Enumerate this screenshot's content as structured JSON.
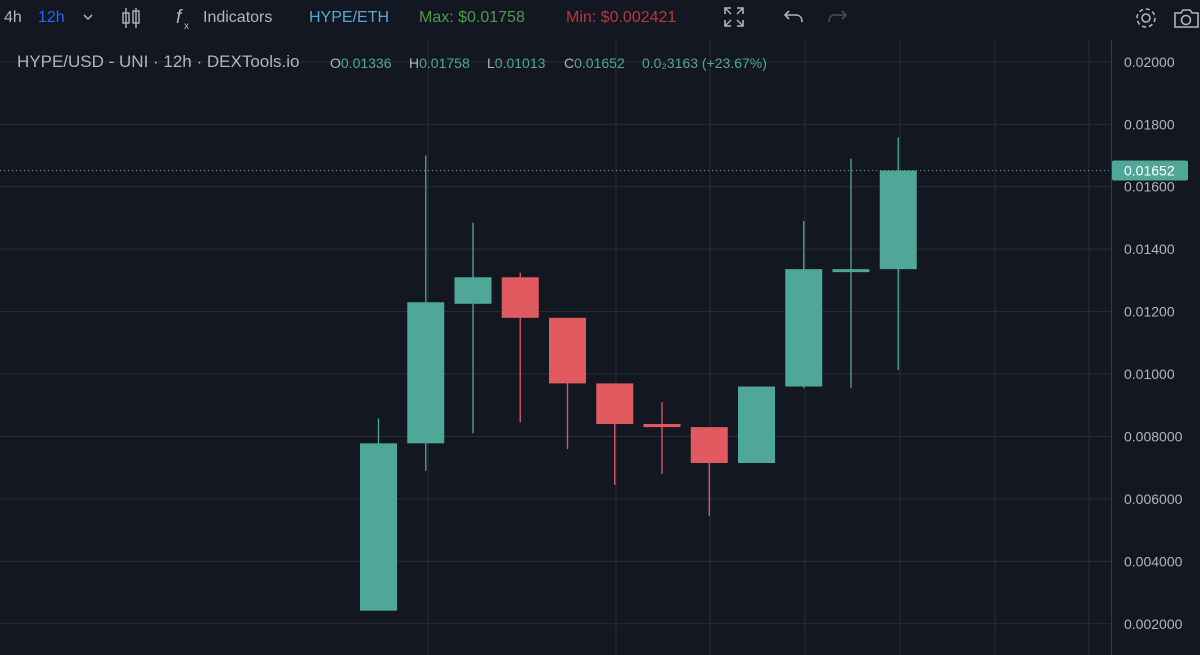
{
  "toolbar": {
    "interval_4h": "4h",
    "interval_12h": "12h",
    "indicators_label": "Indicators",
    "pair_link": "HYPE/ETH",
    "max_label": "Max: $0.01758",
    "min_label": "Min: $0.002421"
  },
  "legend": {
    "title": "HYPE/USD - UNI · 12h · DEXTools.io",
    "o_label": "O",
    "o_value": "0.01336",
    "h_label": "H",
    "h_value": "0.01758",
    "l_label": "L",
    "l_value": "0.01013",
    "c_label": "C",
    "c_value": "0.01652",
    "change": "0.0₂3163 (+23.67%)"
  },
  "colors": {
    "background": "#131722",
    "up": "#4fa797",
    "down": "#e05a5f",
    "grid": "#2a2e39",
    "axis_text": "#b2b5be",
    "accent": "#2962ff",
    "max_text": "#4e9a4c",
    "min_text": "#b33a3a",
    "pair_text": "#5aa7d6"
  },
  "icons": [
    "chevron-down-icon",
    "candles-icon",
    "fx-icon",
    "fullscreen-icon",
    "undo-icon",
    "redo-icon",
    "settings-icon",
    "camera-icon"
  ],
  "chart_data": {
    "type": "candlestick",
    "interval": "12h",
    "ylim": [
      0.001,
      0.0207
    ],
    "yticks": [
      "0.002000",
      "0.004000",
      "0.006000",
      "0.008000",
      "0.01000",
      "0.01200",
      "0.01400",
      "0.01600",
      "0.01800",
      "0.02000"
    ],
    "last_price_label": "0.01652",
    "last_price": 0.01652,
    "candles": [
      {
        "open": 0.00242,
        "high": 0.00858,
        "low": 0.00242,
        "close": 0.00778
      },
      {
        "open": 0.00778,
        "high": 0.017,
        "low": 0.0069,
        "close": 0.0123
      },
      {
        "open": 0.01225,
        "high": 0.01485,
        "low": 0.0081,
        "close": 0.0131
      },
      {
        "open": 0.0131,
        "high": 0.01325,
        "low": 0.00845,
        "close": 0.0118
      },
      {
        "open": 0.0118,
        "high": 0.0118,
        "low": 0.0076,
        "close": 0.0097
      },
      {
        "open": 0.0097,
        "high": 0.0097,
        "low": 0.00645,
        "close": 0.0084
      },
      {
        "open": 0.0084,
        "high": 0.0091,
        "low": 0.0068,
        "close": 0.0083
      },
      {
        "open": 0.0083,
        "high": 0.0083,
        "low": 0.00545,
        "close": 0.00715
      },
      {
        "open": 0.00715,
        "high": 0.0096,
        "low": 0.00715,
        "close": 0.0096
      },
      {
        "open": 0.0096,
        "high": 0.0149,
        "low": 0.00955,
        "close": 0.01336
      },
      {
        "open": 0.01336,
        "high": 0.0169,
        "low": 0.00955,
        "close": 0.01336
      },
      {
        "open": 0.01336,
        "high": 0.01758,
        "low": 0.01013,
        "close": 0.01652
      }
    ]
  }
}
